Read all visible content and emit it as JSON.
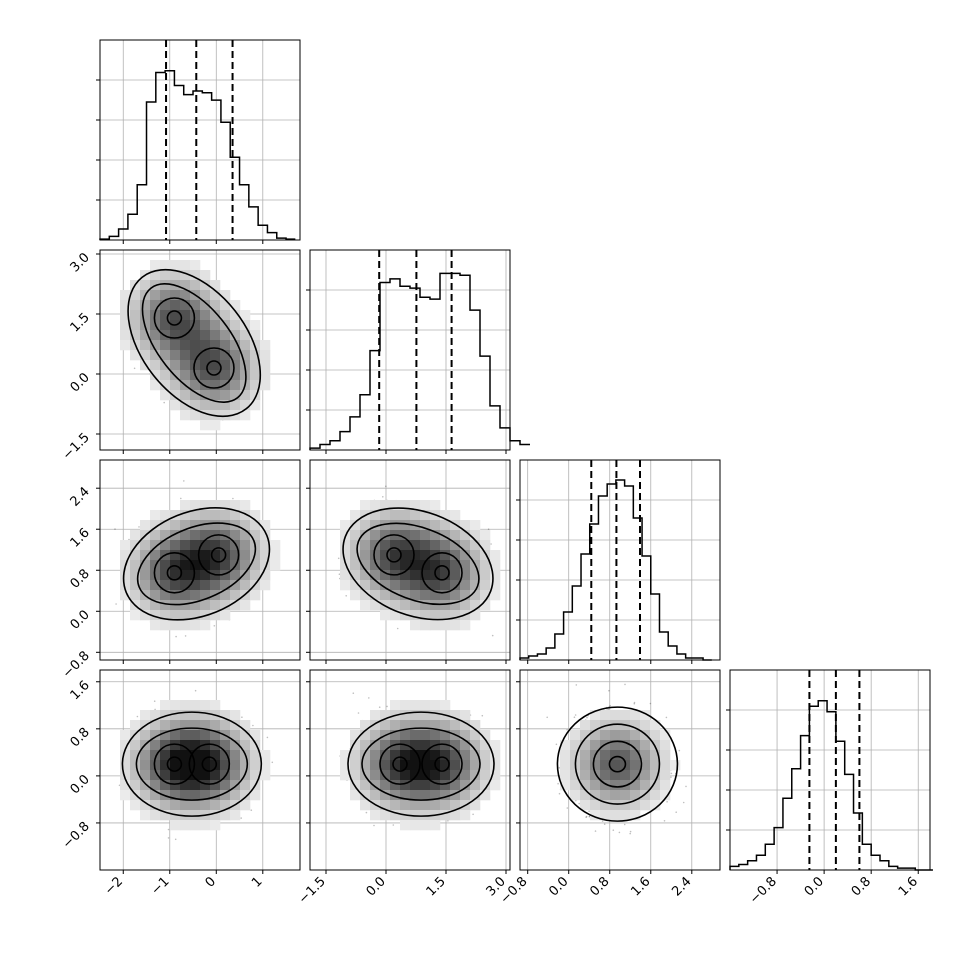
{
  "chart_data": {
    "type": "corner",
    "grid": true,
    "quantiles": [
      0.16,
      0.5,
      0.84
    ],
    "parameters": [
      {
        "range": [
          -2.5,
          1.8
        ],
        "ticks": [
          -2,
          -1,
          0,
          1
        ],
        "tick_labels": [
          "−2",
          "−1",
          "0",
          "1"
        ]
      },
      {
        "range": [
          -1.9,
          3.1
        ],
        "ticks": [
          -1.5,
          0.0,
          1.5,
          3.0
        ],
        "tick_labels": [
          "−1.5",
          "0.0",
          "1.5",
          "3.0"
        ]
      },
      {
        "range": [
          -0.95,
          2.95
        ],
        "ticks": [
          -0.8,
          0.0,
          0.8,
          1.6,
          2.4
        ],
        "tick_labels": [
          "−0.8",
          "0.0",
          "0.8",
          "1.6",
          "2.4"
        ]
      },
      {
        "range": [
          -1.6,
          1.8
        ],
        "ticks": [
          -0.8,
          0.0,
          0.8,
          1.6
        ],
        "tick_labels": [
          "−0.8",
          "0.0",
          "0.8",
          "1.6"
        ]
      }
    ],
    "histograms": [
      {
        "edges_start": -2.5,
        "bin_width": 0.2,
        "counts": [
          0.5,
          2,
          6,
          14,
          30,
          75,
          91,
          92,
          84,
          79,
          81,
          80,
          76,
          64,
          45,
          30,
          18,
          8,
          4,
          1,
          0.5
        ],
        "max": 100,
        "quantile_values": [
          -1.08,
          -0.43,
          0.35
        ]
      },
      {
        "edges_start": -1.9,
        "bin_width": 0.25,
        "counts": [
          1,
          3,
          5,
          10,
          18,
          30,
          54,
          91,
          93,
          89,
          88,
          83,
          82,
          96,
          96,
          95,
          76,
          51,
          24,
          12,
          5,
          3
        ],
        "max": 100,
        "quantile_values": [
          -0.17,
          0.76,
          1.64
        ]
      },
      {
        "edges_start": -0.95,
        "bin_width": 0.17,
        "counts": [
          1,
          2,
          3,
          6,
          13,
          24,
          37,
          53,
          68,
          82,
          88,
          90,
          87,
          71,
          52,
          33,
          14,
          7,
          3,
          1,
          1,
          0
        ],
        "max": 92,
        "quantile_values": [
          0.44,
          0.93,
          1.39
        ]
      },
      {
        "edges_start": -1.6,
        "bin_width": 0.15,
        "counts": [
          2,
          3,
          5,
          8,
          14,
          23,
          39,
          55,
          73,
          89,
          92,
          86,
          70,
          52,
          31,
          14,
          8,
          5,
          2,
          1,
          1,
          0,
          0
        ],
        "max": 100,
        "quantile_values": [
          -0.25,
          0.2,
          0.6
        ]
      }
    ],
    "scatter_modes": {
      "p0": [
        [
          -0.95,
          1.0
        ],
        [
          0.05,
          0.0
        ]
      ],
      "p1": [
        [
          1.4,
          1.0
        ],
        [
          0.05,
          0.0
        ]
      ],
      "p2": [
        [
          0.7,
          1.05
        ],
        [
          0.65,
          1.05
        ]
      ],
      "p3": [
        [
          0.15,
          0.2
        ],
        [
          0.25,
          0.2
        ]
      ]
    },
    "contour_peaks": {
      "p1_p0": [
        [
          -0.9,
          1.4
        ],
        [
          -0.05,
          0.15
        ]
      ],
      "p2_p0": [
        [
          -0.9,
          0.75
        ],
        [
          0.05,
          1.1
        ]
      ],
      "p2_p1": [
        [
          0.2,
          1.1
        ],
        [
          1.4,
          0.75
        ]
      ],
      "p3_p0": [
        [
          -0.9,
          0.2
        ],
        [
          -0.15,
          0.2
        ]
      ],
      "p3_p1": [
        [
          0.35,
          0.2
        ],
        [
          1.4,
          0.2
        ]
      ],
      "p3_p2": [
        [
          0.95,
          0.2
        ]
      ]
    }
  }
}
